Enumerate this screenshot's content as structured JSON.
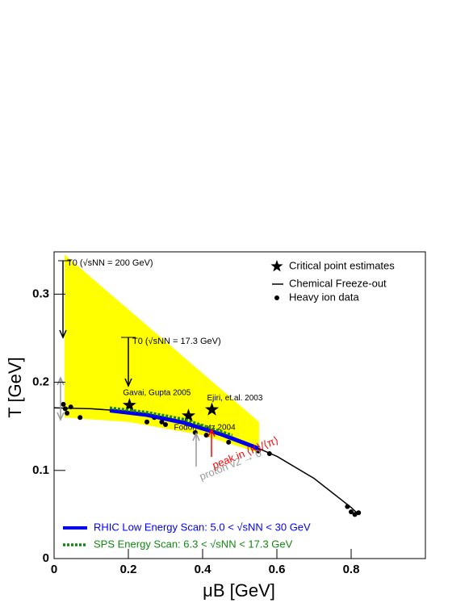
{
  "chart_data": {
    "type": "line",
    "x_label": "μB [GeV]",
    "y_label": "T [GeV]",
    "xlim": [
      0,
      1.0
    ],
    "ylim": [
      0,
      0.348
    ],
    "xticks": [
      0,
      0.2,
      0.4,
      0.6,
      0.8
    ],
    "yticks": [
      0,
      0.1,
      0.2,
      0.3
    ],
    "annotations": [
      "T0 (√sNN = 200 GeV)",
      "T0 (√sNN = 17.3 GeV)",
      "peak in ⟨K⟩/⟨π⟩",
      "proton v2 → 0"
    ],
    "series": [
      {
        "type": "area",
        "color": "#ffff00",
        "x": [
          0.028,
          0.552,
          0.552,
          0.4,
          0.2,
          0.028
        ],
        "y": [
          0.345,
          0.155,
          0.12,
          0.14,
          0.155,
          0.16
        ]
      },
      {
        "type": "line",
        "name": "Chemical Freeze-out",
        "color": "#000000",
        "legend": "upper right",
        "x": [
          0,
          0.1,
          0.2,
          0.3,
          0.4,
          0.5,
          0.6,
          0.7,
          0.8,
          0.82
        ],
        "y": [
          0.171,
          0.17,
          0.167,
          0.159,
          0.148,
          0.134,
          0.116,
          0.091,
          0.058,
          0.05
        ]
      },
      {
        "type": "scatter",
        "name": "Heavy ion data",
        "color": "#000000",
        "legend": "upper right",
        "x": [
          0.025,
          0.03,
          0.035,
          0.045,
          0.07,
          0.25,
          0.27,
          0.29,
          0.3,
          0.38,
          0.41,
          0.47,
          0.55,
          0.58,
          0.79,
          0.8,
          0.81,
          0.82
        ],
        "y": [
          0.175,
          0.17,
          0.165,
          0.172,
          0.16,
          0.155,
          0.16,
          0.155,
          0.152,
          0.143,
          0.14,
          0.132,
          0.122,
          0.119,
          0.059,
          0.053,
          0.05,
          0.052
        ]
      },
      {
        "type": "star",
        "name": "Critical point estimates",
        "color": "#000000",
        "legend": "upper right",
        "x": [
          0.203,
          0.362,
          0.425
        ],
        "y": [
          0.174,
          0.162,
          0.169
        ],
        "labels": [
          "Gavai, Gupta 2005",
          "Fodor, Katz 2004",
          "Ejiri, et.al. 2003"
        ]
      },
      {
        "type": "band",
        "name": "RHIC Low Energy Scan: 5.0 < √sNN < 30 GeV",
        "color": "#0000ee",
        "legend": "lower left",
        "x": [
          0.15,
          0.25,
          0.35,
          0.45,
          0.55
        ],
        "y": [
          0.168,
          0.163,
          0.154,
          0.141,
          0.125
        ]
      },
      {
        "type": "dotted",
        "name": "SPS Energy Scan: 6.3 < √sNN < 17.3 GeV",
        "color": "#118811",
        "legend": "lower left",
        "x": [
          0.15,
          0.25,
          0.35,
          0.48
        ],
        "y": [
          0.171,
          0.166,
          0.158,
          0.14
        ]
      }
    ]
  }
}
